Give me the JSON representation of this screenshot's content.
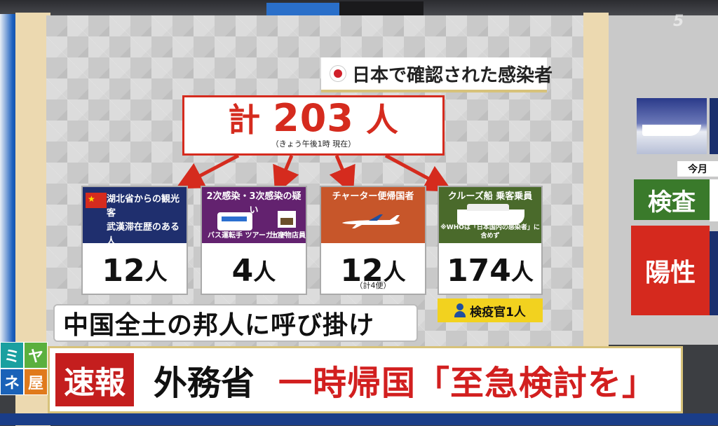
{
  "header": {
    "title": "日本で確認された感染者"
  },
  "total": {
    "prefix": "計",
    "number": "203",
    "unit": "人",
    "note": "（きょう午後1時 現在）"
  },
  "categories": [
    {
      "label_line1": "湖北省からの観光客",
      "label_line2": "武漢滞在歴のある人",
      "value": "12",
      "unit": "人",
      "color": "#1f2f6e",
      "icon": "china-flag-icon"
    },
    {
      "label_line1": "2次感染・3次感染の疑い",
      "sub_left": "バス運転手 ツアーガイド",
      "sub_right": "土産物店員",
      "value": "4",
      "unit": "人",
      "color": "#63226f",
      "icon": "bus-icon"
    },
    {
      "label_line1": "チャーター便帰国者",
      "value": "12",
      "unit": "人",
      "note": "（計4便）",
      "color": "#c7562a",
      "icon": "airplane-icon"
    },
    {
      "label_line1": "クルーズ船 乗客乗員",
      "note_top": "※WHOは「日本国内の感染者」に含めず",
      "value": "174",
      "unit": "人",
      "color": "#4a6a2b",
      "icon": "cruise-ship-icon"
    }
  ],
  "inspector": {
    "label": "検疫官1人"
  },
  "captions": {
    "sub": "中国全土の邦人に呼び掛け",
    "flash": "速報",
    "main_black": "外務省",
    "main_red": "一時帰国「至急検討を」"
  },
  "show_logo": [
    "ミ",
    "ヤ",
    "ネ",
    "屋"
  ],
  "right_panel": {
    "month": "今月",
    "test": "検査",
    "positive": "陽性"
  },
  "colors": {
    "accent_red": "#d52b1e",
    "yellow": "#f2d21f",
    "caption_border": "#d7c27a"
  }
}
